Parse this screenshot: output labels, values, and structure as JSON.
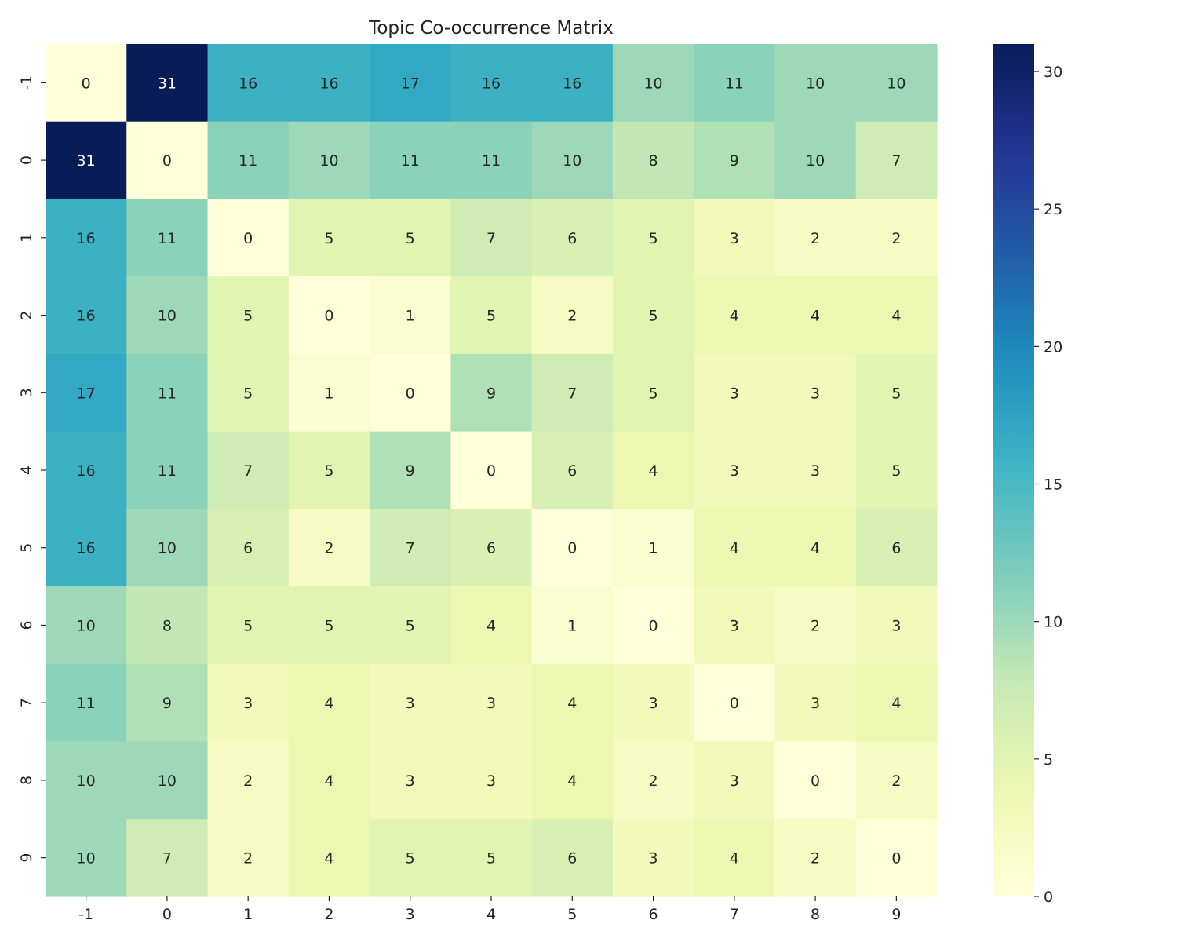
{
  "chart_data": {
    "type": "heatmap",
    "title": "Topic Co-occurrence Matrix",
    "xlabel": "",
    "ylabel": "",
    "x_categories": [
      "-1",
      "0",
      "1",
      "2",
      "3",
      "4",
      "5",
      "6",
      "7",
      "8",
      "9"
    ],
    "y_categories": [
      "-1",
      "0",
      "1",
      "2",
      "3",
      "4",
      "5",
      "6",
      "7",
      "8",
      "9"
    ],
    "values": [
      [
        0,
        31,
        16,
        16,
        17,
        16,
        16,
        10,
        11,
        10,
        10
      ],
      [
        31,
        0,
        11,
        10,
        11,
        11,
        10,
        8,
        9,
        10,
        7
      ],
      [
        16,
        11,
        0,
        5,
        5,
        7,
        6,
        5,
        3,
        2,
        2
      ],
      [
        16,
        10,
        5,
        0,
        1,
        5,
        2,
        5,
        4,
        4,
        4
      ],
      [
        17,
        11,
        5,
        1,
        0,
        9,
        7,
        5,
        3,
        3,
        5
      ],
      [
        16,
        11,
        7,
        5,
        9,
        0,
        6,
        4,
        3,
        3,
        5
      ],
      [
        16,
        10,
        6,
        2,
        7,
        6,
        0,
        1,
        4,
        4,
        6
      ],
      [
        10,
        8,
        5,
        5,
        5,
        4,
        1,
        0,
        3,
        2,
        3
      ],
      [
        11,
        9,
        3,
        4,
        3,
        3,
        4,
        3,
        0,
        3,
        4
      ],
      [
        10,
        10,
        2,
        4,
        3,
        3,
        4,
        2,
        3,
        0,
        2
      ],
      [
        10,
        7,
        2,
        4,
        5,
        5,
        6,
        3,
        4,
        2,
        0
      ]
    ],
    "colormap": "YlGnBu",
    "colorbar": {
      "range": [
        0,
        31
      ],
      "ticks": [
        0,
        5,
        10,
        15,
        20,
        25,
        30
      ]
    },
    "annotations": true
  }
}
